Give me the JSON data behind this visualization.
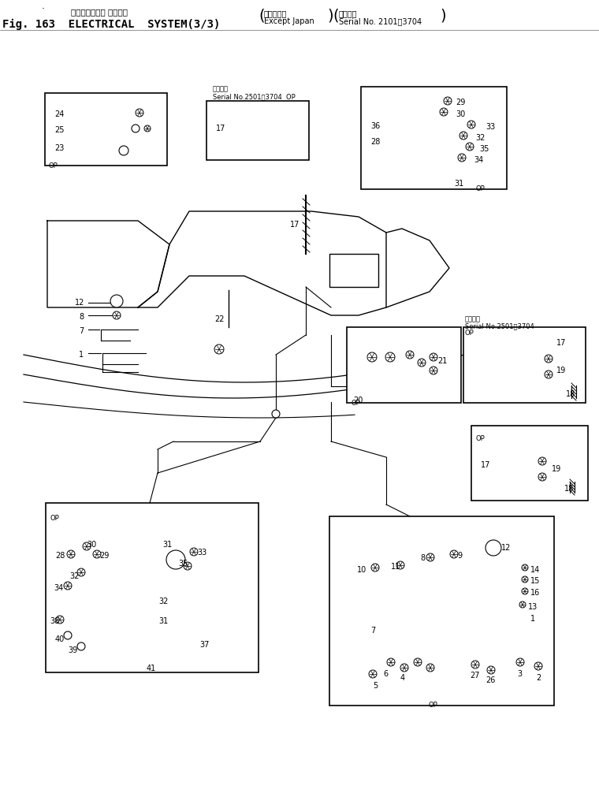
{
  "title_japanese": "エレクトリカル システム",
  "title_english": "Fig. 163  ELECTRICAL  SYSTEM(3/3)",
  "bracket_left_top": "海　外　向",
  "bracket_left_bot": "Except Japan",
  "bracket_right_top": "適用号機",
  "bracket_right_bot": "Serial No. 2101～3704",
  "bg_color": "#ffffff",
  "fig_width": 7.6,
  "fig_height": 10.25,
  "dpi": 100
}
